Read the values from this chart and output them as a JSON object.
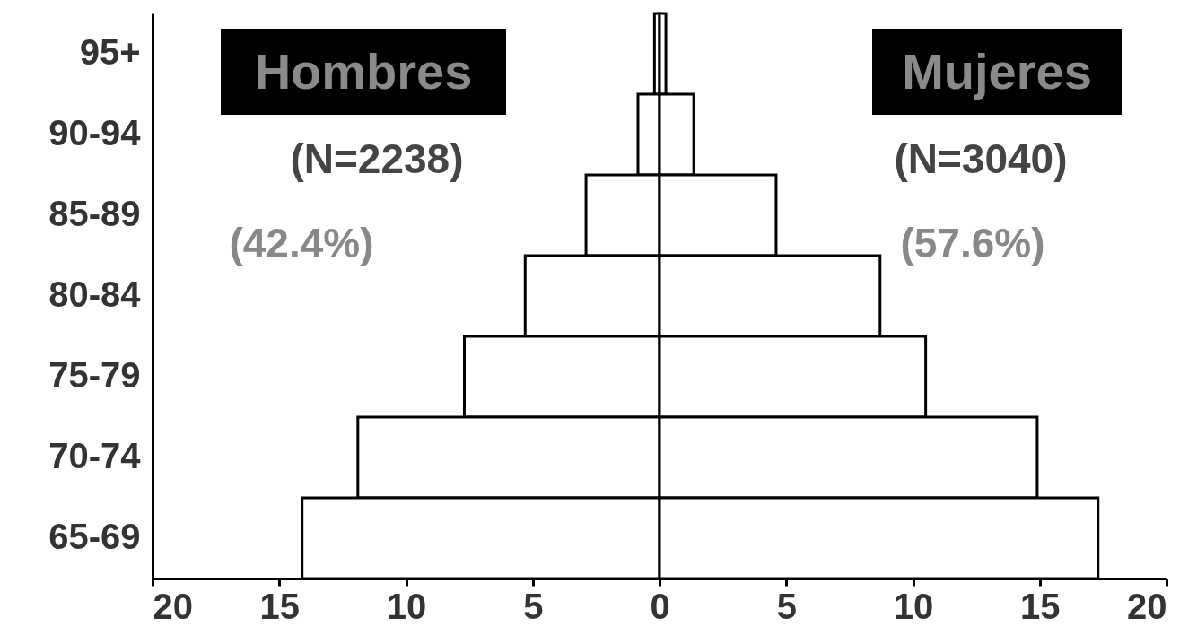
{
  "chart_data": {
    "type": "bar",
    "orientation": "horizontal",
    "categories": [
      "95+",
      "90-94",
      "85-89",
      "80-84",
      "75-79",
      "70-74",
      "65-69"
    ],
    "series": [
      {
        "name": "Hombres",
        "color": "#ffffff",
        "values": [
          -0.2,
          -0.85,
          -2.9,
          -5.3,
          -7.7,
          -11.9,
          -14.1
        ]
      },
      {
        "name": "Mujeres",
        "color": "#ffffff",
        "values": [
          0.25,
          1.35,
          4.6,
          8.7,
          10.5,
          14.9,
          17.3
        ]
      }
    ],
    "xlim": [
      -20,
      20
    ],
    "xticks": [
      {
        "value": -20,
        "label": "20"
      },
      {
        "value": -15,
        "label": "15"
      },
      {
        "value": -10,
        "label": "10"
      },
      {
        "value": -5,
        "label": "5"
      },
      0,
      5,
      10,
      15,
      20
    ],
    "annotations": [
      "(N=2238)",
      "(42.4%)",
      "(N=3040)",
      "(57.6%)"
    ],
    "stacked": true,
    "grid": false
  }
}
